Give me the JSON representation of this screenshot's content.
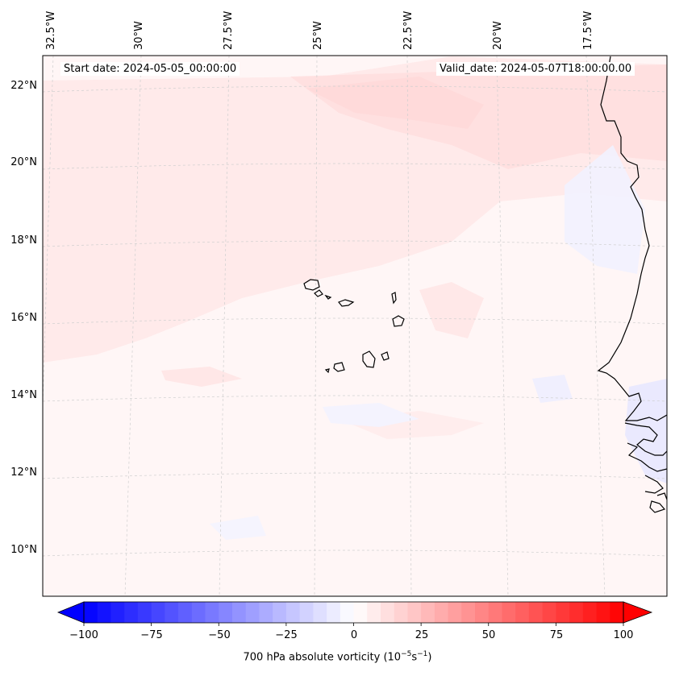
{
  "map": {
    "start_label": "Start date: 2024-05-05_00:00:00",
    "valid_label": "Valid_date: 2024-05-07T18:00:00.00",
    "lat_ticks": [
      "22°N",
      "20°N",
      "18°N",
      "16°N",
      "14°N",
      "12°N",
      "10°N"
    ],
    "lon_ticks": [
      "32.5°W",
      "30°W",
      "27.5°W",
      "25°W",
      "22.5°W",
      "20°W",
      "17.5°W"
    ],
    "colorbar": {
      "label_prefix": "700 hPa absolute vorticity (10",
      "label_exp1": "−5",
      "label_mid": "s",
      "label_exp2": "−1",
      "label_suffix": ")",
      "ticks": [
        "−100",
        "−75",
        "−50",
        "−25",
        "0",
        "25",
        "50",
        "75",
        "100"
      ],
      "min": -100,
      "max": 100,
      "step": 5,
      "colormap": "bwr"
    },
    "colors": {
      "background_field": "#fff5f5",
      "coast": "#000000",
      "grid": "#c8c8c8"
    }
  }
}
